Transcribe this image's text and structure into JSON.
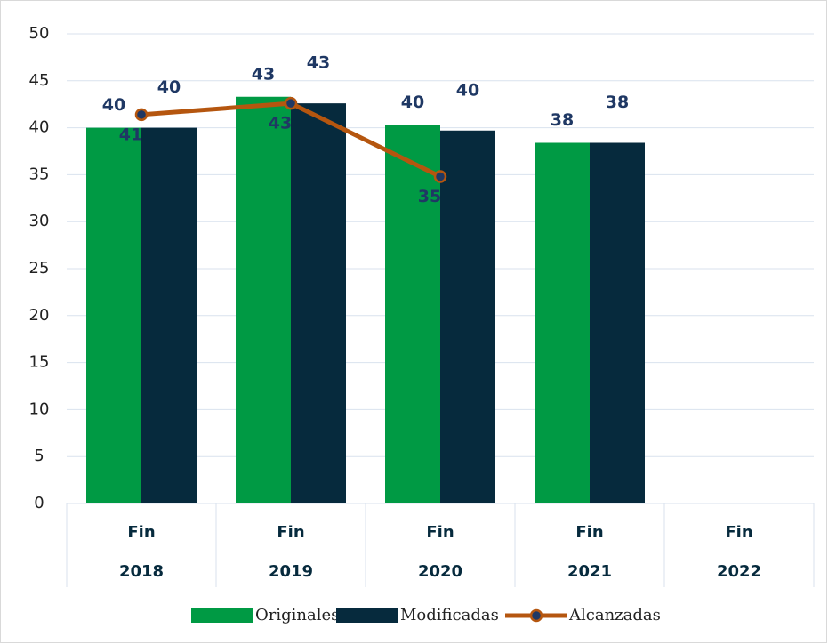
{
  "chart_data": {
    "type": "bar-line",
    "categories": [
      [
        "Fin",
        "2018"
      ],
      [
        "Fin",
        "2019"
      ],
      [
        "Fin",
        "2020"
      ],
      [
        "Fin",
        "2021"
      ],
      [
        "Fin",
        "2022"
      ]
    ],
    "series": [
      {
        "name": "Originales",
        "type": "bar",
        "color": "#009a44",
        "values": [
          40,
          43.3,
          40.3,
          38.4,
          null
        ],
        "value_labels": [
          "40",
          "43",
          "40",
          "38",
          null
        ]
      },
      {
        "name": "Modificadas",
        "type": "bar",
        "color": "#062a3d",
        "values": [
          40,
          42.6,
          39.7,
          38.4,
          null
        ],
        "value_labels": [
          "40",
          "43",
          "40",
          "38",
          null
        ]
      },
      {
        "name": "Alcanzadas",
        "type": "line",
        "color": "#b5560f",
        "marker_color": "#1f3864",
        "values": [
          41.4,
          42.6,
          34.8,
          null,
          null
        ],
        "value_labels": [
          "41",
          "43",
          "35",
          null,
          null
        ]
      }
    ],
    "ylim": [
      0,
      50
    ],
    "yticks": [
      0,
      5,
      10,
      15,
      20,
      25,
      30,
      35,
      40,
      45,
      50
    ],
    "grid": true,
    "legend": "bottom"
  }
}
